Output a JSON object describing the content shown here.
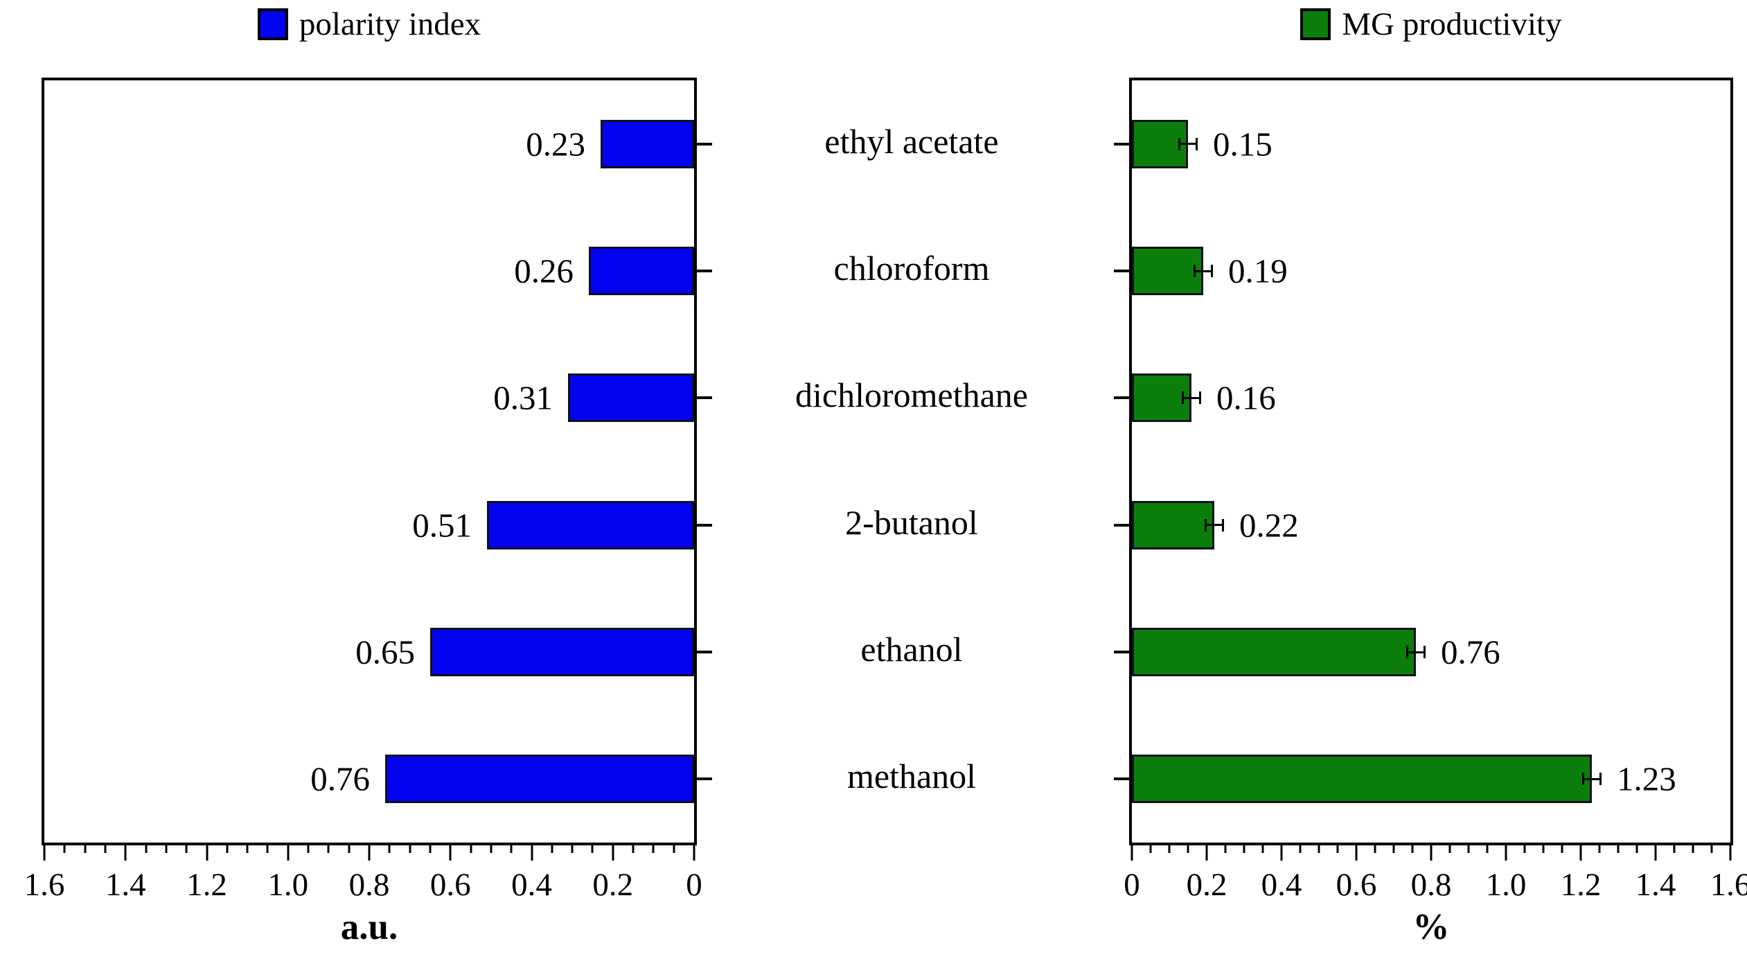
{
  "figure": {
    "background": "#ffffff",
    "text_color": "#000000",
    "left_axis_title": "a.u.",
    "right_axis_title": "%"
  },
  "chart_data": [
    {
      "type": "bar",
      "orientation": "horizontal",
      "panel": "left",
      "series": "polarity index",
      "color": "#0303f2",
      "legend_swatch": "blue-square",
      "categories": [
        "ethyl acetate",
        "chloroform",
        "dichloromethane",
        "2-butanol",
        "ethanol",
        "methanol"
      ],
      "values": [
        0.23,
        0.26,
        0.31,
        0.51,
        0.65,
        0.76
      ],
      "value_labels": [
        "0.23",
        "0.26",
        "0.31",
        "0.51",
        "0.65",
        "0.76"
      ],
      "xlabel": "a.u.",
      "xlim": [
        0,
        1.6
      ],
      "x_ticks": [
        "1.6",
        "1.4",
        "1.2",
        "1.0",
        "0.8",
        "0.6",
        "0.4",
        "0.2",
        "0"
      ],
      "major_tick_step": 0.2,
      "minor_tick_step": 0.05,
      "axis_reversed": true,
      "error_bars": false,
      "grid": false,
      "legend_position": "top"
    },
    {
      "type": "bar",
      "orientation": "horizontal",
      "panel": "right",
      "series": "MG productivity",
      "color": "#0b7e0b",
      "legend_swatch": "green-square",
      "categories": [
        "ethyl acetate",
        "chloroform",
        "dichloromethane",
        "2-butanol",
        "ethanol",
        "methanol"
      ],
      "values": [
        0.15,
        0.19,
        0.16,
        0.22,
        0.76,
        1.23
      ],
      "value_labels": [
        "0.15",
        "0.19",
        "0.16",
        "0.22",
        "0.76",
        "1.23"
      ],
      "xlabel": "%",
      "xlim": [
        0,
        1.6
      ],
      "x_ticks": [
        "0",
        "0.2",
        "0.4",
        "0.6",
        "0.8",
        "1.0",
        "1.2",
        "1.4",
        "1.6"
      ],
      "major_tick_step": 0.2,
      "minor_tick_step": 0.05,
      "axis_reversed": false,
      "error_bars": true,
      "grid": false,
      "legend_position": "top"
    }
  ]
}
